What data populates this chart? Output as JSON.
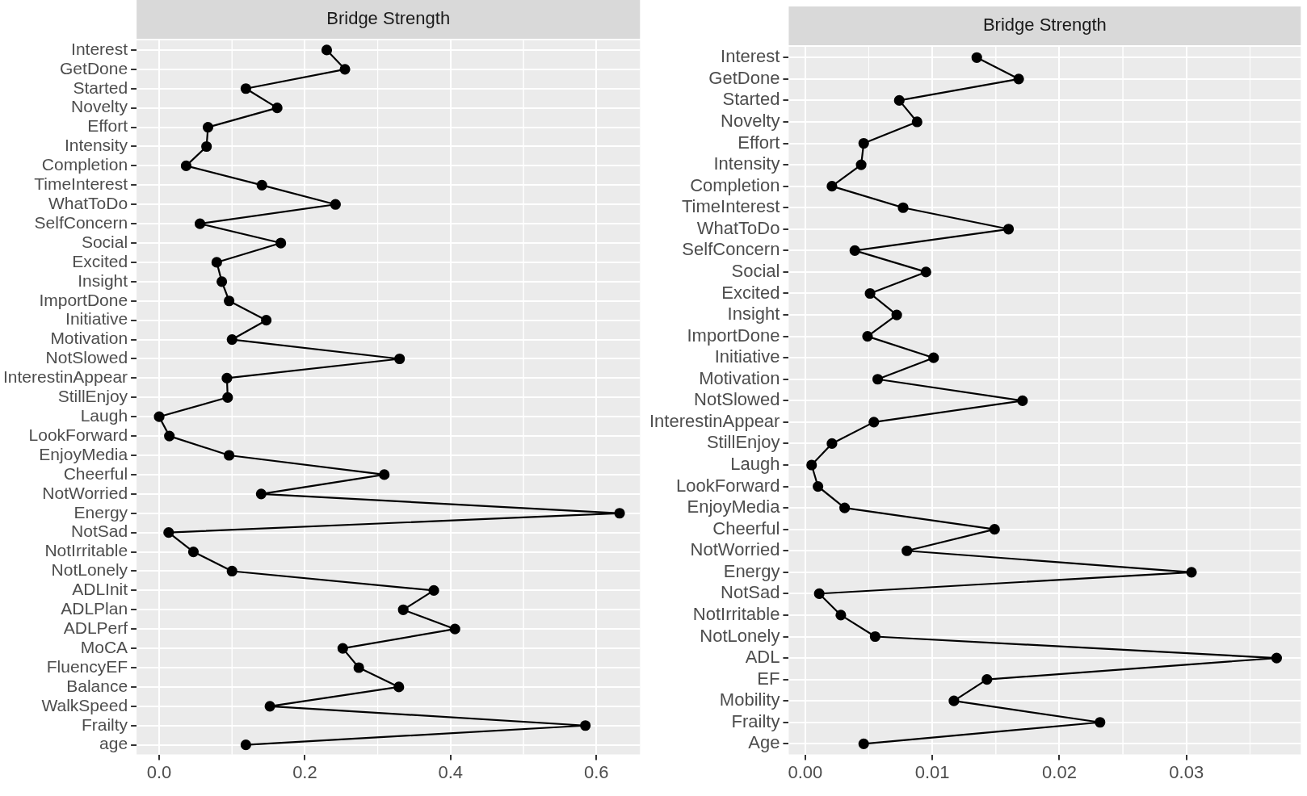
{
  "chart_data": [
    {
      "type": "line",
      "orientation": "horizontal",
      "title": "Bridge Strength",
      "marker": "circle",
      "grid": true,
      "categories": [
        "Interest",
        "GetDone",
        "Started",
        "Novelty",
        "Effort",
        "Intensity",
        "Completion",
        "TimeInterest",
        "WhatToDo",
        "SelfConcern",
        "Social",
        "Excited",
        "Insight",
        "ImportDone",
        "Initiative",
        "Motivation",
        "NotSlowed",
        "InterestinAppear",
        "StillEnjoy",
        "Laugh",
        "LookForward",
        "EnjoyMedia",
        "Cheerful",
        "NotWorried",
        "Energy",
        "NotSad",
        "NotIrritable",
        "NotLonely",
        "ADLInit",
        "ADLPlan",
        "ADLPerf",
        "MoCA",
        "FluencyEF",
        "Balance",
        "WalkSpeed",
        "Frailty",
        "age"
      ],
      "series": [
        {
          "color": "#000000",
          "values": [
            0.23,
            0.255,
            0.119,
            0.162,
            0.067,
            0.065,
            0.037,
            0.141,
            0.242,
            0.056,
            0.167,
            0.079,
            0.086,
            0.096,
            0.147,
            0.1,
            0.33,
            0.093,
            0.094,
            0.0,
            0.014,
            0.096,
            0.309,
            0.14,
            0.632,
            0.013,
            0.047,
            0.1,
            0.377,
            0.335,
            0.406,
            0.252,
            0.274,
            0.329,
            0.152,
            0.585,
            0.119
          ]
        }
      ],
      "xlim": [
        -0.031,
        0.66
      ],
      "xticks": [
        {
          "value": 0,
          "label": "0.0"
        },
        {
          "value": 0.2,
          "label": "0.2"
        },
        {
          "value": 0.4,
          "label": "0.4"
        },
        {
          "value": 0.6,
          "label": "0.6"
        }
      ]
    },
    {
      "type": "line",
      "orientation": "horizontal",
      "title": "Bridge Strength",
      "marker": "circle",
      "grid": true,
      "categories": [
        "Interest",
        "GetDone",
        "Started",
        "Novelty",
        "Effort",
        "Intensity",
        "Completion",
        "TimeInterest",
        "WhatToDo",
        "SelfConcern",
        "Social",
        "Excited",
        "Insight",
        "ImportDone",
        "Initiative",
        "Motivation",
        "NotSlowed",
        "InterestinAppear",
        "StillEnjoy",
        "Laugh",
        "LookForward",
        "EnjoyMedia",
        "Cheerful",
        "NotWorried",
        "Energy",
        "NotSad",
        "NotIrritable",
        "NotLonely",
        "ADL",
        "EF",
        "Mobility",
        "Frailty",
        "Age"
      ],
      "series": [
        {
          "color": "#000000",
          "values": [
            0.0135,
            0.0168,
            0.0074,
            0.0088,
            0.0046,
            0.0044,
            0.0021,
            0.0077,
            0.016,
            0.0039,
            0.0095,
            0.0051,
            0.0072,
            0.0049,
            0.0101,
            0.0057,
            0.0171,
            0.0054,
            0.0021,
            0.0005,
            0.001,
            0.0031,
            0.0149,
            0.008,
            0.0304,
            0.0011,
            0.0028,
            0.0055,
            0.0371,
            0.0143,
            0.0117,
            0.0232,
            0.0046
          ]
        }
      ],
      "xlim": [
        -0.0013,
        0.039
      ],
      "xticks": [
        {
          "value": 0,
          "label": "0.00"
        },
        {
          "value": 0.01,
          "label": "0.01"
        },
        {
          "value": 0.02,
          "label": "0.02"
        },
        {
          "value": 0.03,
          "label": "0.03"
        }
      ]
    }
  ]
}
